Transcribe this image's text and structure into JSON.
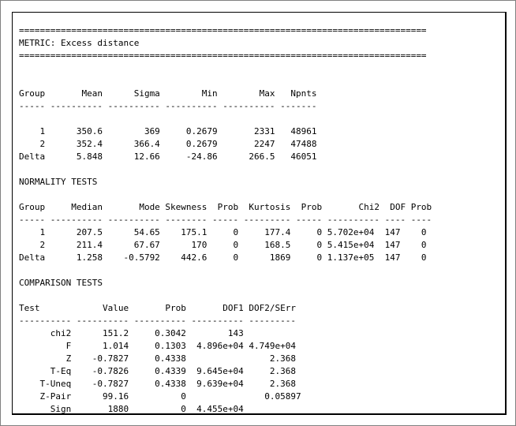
{
  "window": {
    "title": "METRIC: Excess distance"
  },
  "lines": [
    "==============================================================================",
    "METRIC: Excess distance",
    "==============================================================================",
    "",
    "",
    "Group       Mean      Sigma        Min        Max   Npnts",
    "----- ---------- ---------- ---------- ---------- -------",
    "",
    "    1      350.6        369     0.2679       2331   48961",
    "    2      352.4      366.4     0.2679       2247   47488",
    "Delta      5.848      12.66     -24.86      266.5   46051",
    "",
    "NORMALITY TESTS",
    "",
    "Group     Median       Mode Skewness  Prob  Kurtosis  Prob       Chi2  DOF Prob",
    "----- ---------- ---------- -------- ----- --------- ----- ---------- ---- ----",
    "    1      207.5      54.65    175.1     0     177.4     0 5.702e+04  147    0",
    "    2      211.4      67.67      170     0     168.5     0 5.415e+04  147    0",
    "Delta      1.258    -0.5792    442.6     0      1869     0 1.137e+05  147    0",
    "",
    "COMPARISON TESTS",
    "",
    "Test            Value       Prob       DOF1 DOF2/SErr",
    "---------- ---------- ---------- ---------- ---------",
    "      chi2      151.2     0.3042        143",
    "         F      1.014     0.1303  4.896e+04 4.749e+04",
    "         Z    -0.7827     0.4338                2.368",
    "      T-Eq    -0.7826     0.4339  9.645e+04     2.368",
    "    T-Uneq    -0.7827     0.4338  9.639e+04     2.368",
    "    Z-Pair      99.16          0               0.05897",
    "      Sign       1880          0  4.455e+04"
  ]
}
